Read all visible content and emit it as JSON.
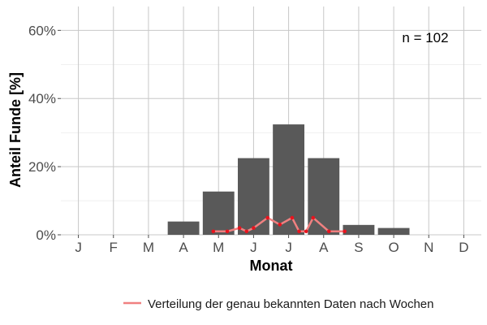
{
  "chart_data": {
    "type": "bar",
    "categories": [
      "J",
      "F",
      "M",
      "A",
      "M",
      "J",
      "J",
      "A",
      "S",
      "O",
      "N",
      "D"
    ],
    "values": [
      0,
      0,
      0,
      3.9,
      12.7,
      22.5,
      32.4,
      22.5,
      2.9,
      2.0,
      0,
      0
    ],
    "xlabel": "Monat",
    "ylabel": "Anteil Funde [%]",
    "ylim": [
      0,
      67
    ],
    "yticks": [
      0,
      20,
      40,
      60
    ],
    "ytick_labels": [
      "0%",
      "20%",
      "40%",
      "60%"
    ],
    "grid": true,
    "bar_color": "#595959",
    "annotation": "n = 102",
    "line_series": {
      "name": "Verteilung der genau bekannten Daten nach Wochen",
      "color": "#f08080",
      "point_color": "#e8141e",
      "points": [
        [
          3.85,
          1.0
        ],
        [
          4.25,
          1.0
        ],
        [
          4.6,
          2.0
        ],
        [
          4.8,
          1.0
        ],
        [
          5.0,
          2.0
        ],
        [
          5.4,
          5.0
        ],
        [
          5.75,
          3.0
        ],
        [
          6.1,
          5.0
        ],
        [
          6.3,
          1.0
        ],
        [
          6.5,
          1.0
        ],
        [
          6.7,
          5.0
        ],
        [
          7.15,
          1.0
        ],
        [
          7.6,
          1.0
        ]
      ]
    },
    "legend_position": "bottom"
  }
}
